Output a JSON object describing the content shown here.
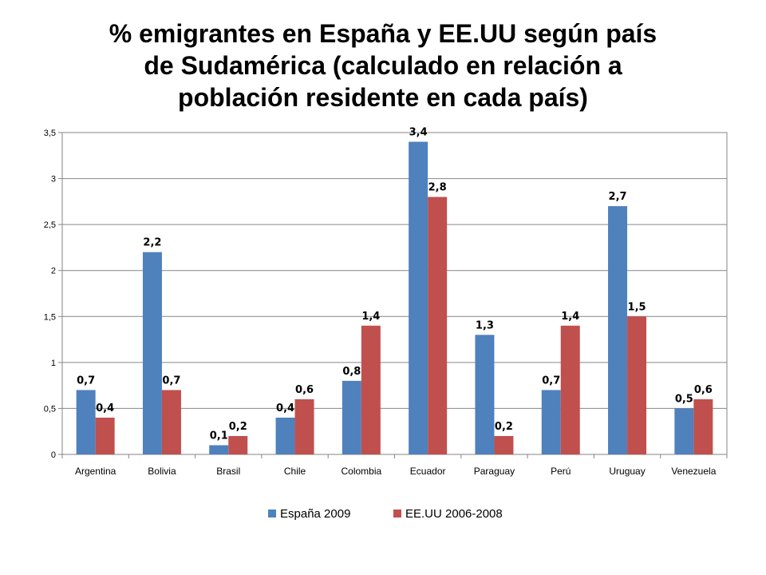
{
  "title_lines": [
    "% emigrantes en España y EE.UU según país",
    "de Sudamérica (calculado en relación a",
    "población residente en cada país)"
  ],
  "chart_data": {
    "type": "bar",
    "title": "% emigrantes en España y EE.UU según país de Sudamérica (calculado en relación a población residente en cada país)",
    "categories": [
      "Argentina",
      "Bolivia",
      "Brasil",
      "Chile",
      "Colombia",
      "Ecuador",
      "Paraguay",
      "Perú",
      "Uruguay",
      "Venezuela"
    ],
    "series": [
      {
        "name": "España 2009",
        "color": "#4F81BD",
        "values": [
          0.7,
          2.2,
          0.1,
          0.4,
          0.8,
          3.4,
          1.3,
          0.7,
          2.7,
          0.5
        ],
        "labels": [
          "0,7",
          "2,2",
          "0,1",
          "0,4",
          "0,8",
          "3,4",
          "1,3",
          "0,7",
          "2,7",
          "0,5"
        ]
      },
      {
        "name": "EE.UU 2006-2008",
        "color": "#C0504D",
        "values": [
          0.4,
          0.7,
          0.2,
          0.6,
          1.4,
          2.8,
          0.2,
          1.4,
          1.5,
          0.6
        ],
        "labels": [
          "0,4",
          "0,7",
          "0,2",
          "0,6",
          "1,4",
          "2,8",
          "0,2",
          "1,4",
          "1,5",
          "0,6"
        ]
      }
    ],
    "ylim": [
      0,
      3.5
    ],
    "yticks": [
      0,
      0.5,
      1,
      1.5,
      2,
      2.5,
      3,
      3.5
    ],
    "ytick_labels": [
      "0",
      "0,5",
      "1",
      "1,5",
      "2",
      "2,5",
      "3",
      "3,5"
    ],
    "xlabel": "",
    "ylabel": "",
    "grid": true,
    "legend": "bottom"
  }
}
